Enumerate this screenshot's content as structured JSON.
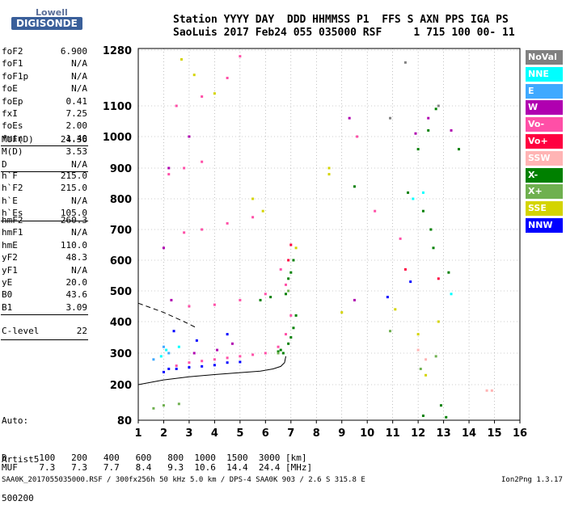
{
  "logo": {
    "top": "Lowell",
    "bottom": "DIGISONDE"
  },
  "header": {
    "line1": "Station YYYY DAY  DDD HHMMSS P1  FFS S AXN PPS IGA PS",
    "line2": "SaoLuis 2017 Feb24 055 035000 RSF     1 715 100 00- 11"
  },
  "params": {
    "group1": [
      {
        "k": "foF2",
        "v": "6.900"
      },
      {
        "k": "foF1",
        "v": "N/A"
      },
      {
        "k": "foF1p",
        "v": "N/A"
      },
      {
        "k": "foE",
        "v": "N/A"
      },
      {
        "k": "foEp",
        "v": "0.41"
      },
      {
        "k": "fxI",
        "v": "7.25"
      },
      {
        "k": "foEs",
        "v": "2.00"
      },
      {
        "k": "fmin",
        "v": "1.40"
      }
    ],
    "group2": [
      {
        "k": "MUF(D)",
        "v": "24.36"
      },
      {
        "k": "M(D)",
        "v": "3.53"
      },
      {
        "k": "D",
        "v": "N/A"
      }
    ],
    "group3": [
      {
        "k": "h`F",
        "v": "215.0"
      },
      {
        "k": "h`F2",
        "v": "215.0"
      },
      {
        "k": "h`E",
        "v": "N/A"
      },
      {
        "k": "h`Es",
        "v": "105.0"
      }
    ],
    "group4": [
      {
        "k": "hmF2",
        "v": "260.3"
      },
      {
        "k": "hmF1",
        "v": "N/A"
      },
      {
        "k": "hmE",
        "v": "110.0"
      },
      {
        "k": "yF2",
        "v": "48.3"
      },
      {
        "k": "yF1",
        "v": "N/A"
      },
      {
        "k": "yE",
        "v": "20.0"
      },
      {
        "k": "B0",
        "v": "43.6"
      },
      {
        "k": "B1",
        "v": "3.09"
      }
    ],
    "group5": [
      {
        "k": "C-level",
        "v": "22"
      }
    ],
    "auto": [
      "Auto:",
      "Artist5",
      "500200"
    ]
  },
  "legend": [
    {
      "label": "NoVal",
      "bg": "#808080",
      "fg": "#ffffff"
    },
    {
      "label": "NNE",
      "bg": "#00ffff",
      "fg": "#ffffff"
    },
    {
      "label": "E",
      "bg": "#3fa9ff",
      "fg": "#ffffff"
    },
    {
      "label": "W",
      "bg": "#b000b0",
      "fg": "#ffffff"
    },
    {
      "label": "Vo-",
      "bg": "#ff4fa7",
      "fg": "#ffffff"
    },
    {
      "label": "Vo+",
      "bg": "#ff0040",
      "fg": "#ffffff"
    },
    {
      "label": "SSW",
      "bg": "#ffb4b4",
      "fg": "#ffffff"
    },
    {
      "label": "X-",
      "bg": "#008000",
      "fg": "#ffffff"
    },
    {
      "label": "X+",
      "bg": "#6fb04f",
      "fg": "#ffffff"
    },
    {
      "label": "SSE",
      "bg": "#d4d400",
      "fg": "#ffffff"
    },
    {
      "label": "NNW",
      "bg": "#0000ff",
      "fg": "#ffffff"
    }
  ],
  "chart_data": {
    "type": "scatter",
    "xlabel": "",
    "ylabel": "",
    "xlim": [
      1,
      16
    ],
    "ylim": [
      80,
      1280
    ],
    "x_ticks": [
      1,
      2,
      3,
      4,
      5,
      6,
      7,
      8,
      9,
      10,
      11,
      12,
      13,
      14,
      15,
      16
    ],
    "y_ticks": [
      80,
      200,
      300,
      400,
      500,
      600,
      700,
      800,
      900,
      1000,
      1100,
      1280
    ],
    "grid": true,
    "series": [
      {
        "name": "X-",
        "color": "#008000",
        "points": [
          [
            6.7,
            300
          ],
          [
            6.9,
            330
          ],
          [
            7.0,
            350
          ],
          [
            7.1,
            380
          ],
          [
            7.2,
            420
          ],
          [
            6.5,
            305
          ],
          [
            6.6,
            310
          ],
          [
            5.8,
            470
          ],
          [
            6.2,
            480
          ],
          [
            6.8,
            490
          ],
          [
            6.9,
            540
          ],
          [
            7.0,
            560
          ],
          [
            7.1,
            600
          ],
          [
            12.0,
            960
          ],
          [
            12.4,
            1020
          ],
          [
            12.7,
            1090
          ],
          [
            13.6,
            960
          ],
          [
            9.5,
            840
          ],
          [
            12.2,
            760
          ],
          [
            11.6,
            820
          ],
          [
            12.5,
            700
          ],
          [
            12.6,
            640
          ],
          [
            13.2,
            560
          ],
          [
            12.9,
            130
          ],
          [
            12.2,
            95
          ],
          [
            13.1,
            90
          ]
        ]
      },
      {
        "name": "Vo-",
        "color": "#ff4fa7",
        "points": [
          [
            2.5,
            260
          ],
          [
            3.0,
            270
          ],
          [
            3.5,
            275
          ],
          [
            4.0,
            280
          ],
          [
            4.5,
            285
          ],
          [
            5.0,
            290
          ],
          [
            5.5,
            295
          ],
          [
            6.0,
            300
          ],
          [
            6.5,
            320
          ],
          [
            6.8,
            360
          ],
          [
            7.0,
            420
          ],
          [
            3.0,
            450
          ],
          [
            4.0,
            455
          ],
          [
            5.0,
            470
          ],
          [
            6.0,
            490
          ],
          [
            6.8,
            520
          ],
          [
            2.8,
            690
          ],
          [
            3.5,
            700
          ],
          [
            4.5,
            720
          ],
          [
            5.5,
            740
          ],
          [
            2.2,
            880
          ],
          [
            2.8,
            900
          ],
          [
            3.5,
            920
          ],
          [
            2.5,
            1100
          ],
          [
            3.5,
            1130
          ],
          [
            4.5,
            1190
          ],
          [
            5.0,
            1260
          ],
          [
            6.6,
            570
          ],
          [
            9.6,
            1000
          ],
          [
            10.3,
            760
          ],
          [
            11.3,
            670
          ]
        ]
      },
      {
        "name": "W",
        "color": "#b000b0",
        "points": [
          [
            2.3,
            470
          ],
          [
            3.2,
            300
          ],
          [
            4.1,
            310
          ],
          [
            4.7,
            330
          ],
          [
            2.0,
            640
          ],
          [
            2.2,
            900
          ],
          [
            3.0,
            1000
          ],
          [
            9.3,
            1060
          ],
          [
            11.9,
            1010
          ],
          [
            12.4,
            1060
          ],
          [
            13.3,
            1020
          ],
          [
            9.5,
            470
          ]
        ]
      },
      {
        "name": "NNW",
        "color": "#0000ff",
        "points": [
          [
            2.0,
            240
          ],
          [
            2.2,
            250
          ],
          [
            2.5,
            250
          ],
          [
            3.0,
            255
          ],
          [
            3.5,
            258
          ],
          [
            4.0,
            262
          ],
          [
            4.5,
            270
          ],
          [
            5.0,
            272
          ],
          [
            3.3,
            340
          ],
          [
            2.4,
            370
          ],
          [
            4.5,
            360
          ],
          [
            10.8,
            480
          ],
          [
            11.7,
            530
          ]
        ]
      },
      {
        "name": "NNE",
        "color": "#00ffff",
        "points": [
          [
            1.9,
            290
          ],
          [
            2.1,
            310
          ],
          [
            2.6,
            320
          ],
          [
            11.8,
            800
          ],
          [
            12.2,
            820
          ],
          [
            13.3,
            490
          ]
        ]
      },
      {
        "name": "E",
        "color": "#3fa9ff",
        "points": [
          [
            2.2,
            300
          ],
          [
            1.6,
            280
          ],
          [
            2.0,
            320
          ]
        ]
      },
      {
        "name": "Vo+",
        "color": "#ff0040",
        "points": [
          [
            6.9,
            600
          ],
          [
            7.0,
            650
          ],
          [
            11.5,
            570
          ],
          [
            12.8,
            540
          ]
        ]
      },
      {
        "name": "SSW",
        "color": "#ffb4b4",
        "points": [
          [
            14.7,
            180
          ],
          [
            14.9,
            180
          ],
          [
            12.0,
            310
          ],
          [
            12.3,
            280
          ]
        ]
      },
      {
        "name": "SSE",
        "color": "#d4d400",
        "points": [
          [
            8.5,
            880
          ],
          [
            8.5,
            900
          ],
          [
            2.7,
            1250
          ],
          [
            3.2,
            1200
          ],
          [
            4.0,
            1140
          ],
          [
            5.5,
            800
          ],
          [
            5.9,
            760
          ],
          [
            7.2,
            640
          ],
          [
            9.0,
            430
          ],
          [
            12.3,
            230
          ],
          [
            11.1,
            440
          ],
          [
            12.8,
            400
          ],
          [
            12.0,
            360
          ]
        ]
      },
      {
        "name": "X+",
        "color": "#6fb04f",
        "points": [
          [
            1.6,
            120
          ],
          [
            2.0,
            130
          ],
          [
            2.6,
            135
          ],
          [
            6.5,
            300
          ],
          [
            6.9,
            500
          ],
          [
            12.1,
            250
          ],
          [
            12.7,
            290
          ],
          [
            10.9,
            370
          ]
        ]
      },
      {
        "name": "NoVal",
        "color": "#808080",
        "points": [
          [
            11.5,
            1240
          ],
          [
            10.9,
            1060
          ],
          [
            12.8,
            1100
          ]
        ]
      }
    ],
    "trace_solid": [
      [
        1.0,
        200
      ],
      [
        2.0,
        215
      ],
      [
        3.0,
        225
      ],
      [
        4.0,
        232
      ],
      [
        5.0,
        238
      ],
      [
        5.8,
        243
      ],
      [
        6.3,
        250
      ],
      [
        6.6,
        258
      ],
      [
        6.75,
        270
      ],
      [
        6.8,
        290
      ]
    ],
    "trace_dashed": [
      [
        1.0,
        460
      ],
      [
        2.0,
        430
      ],
      [
        2.8,
        400
      ],
      [
        3.3,
        380
      ]
    ]
  },
  "footer": {
    "d_line": "D      100   200   400   600   800  1000  1500  3000 [km]",
    "muf_line": "MUF    7.3   7.3   7.7   8.4   9.3  10.6  14.4  24.4 [MHz]",
    "file_line": "SAA0K_2017055035000.RSF / 300fx256h 50 kHz 5.0 km / DPS-4 SAA0K 903 / 2.6 S 315.8 E",
    "version": "Ion2Png 1.3.17"
  }
}
